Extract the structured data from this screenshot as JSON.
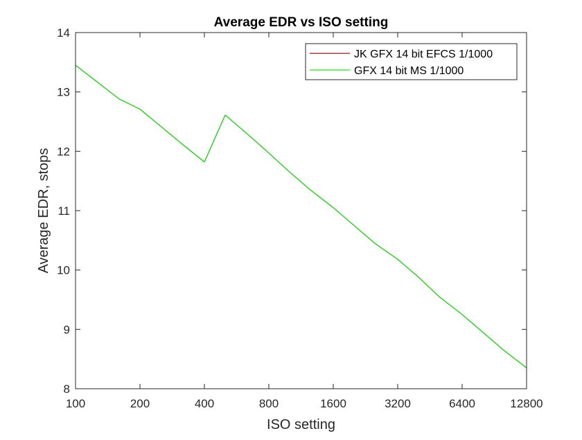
{
  "chart_data": {
    "type": "line",
    "title": "Average EDR vs ISO setting",
    "xlabel": "ISO setting",
    "ylabel": "Average EDR, stops",
    "x_scale": "log2",
    "xlim": [
      100,
      12800
    ],
    "ylim": [
      8,
      14
    ],
    "x_ticks": [
      100,
      200,
      400,
      800,
      1600,
      3200,
      6400,
      12800
    ],
    "x_tick_labels": [
      "100",
      "200",
      "400",
      "800",
      "1600",
      "3200",
      "6400",
      "12800"
    ],
    "y_ticks": [
      8,
      9,
      10,
      11,
      12,
      13,
      14
    ],
    "y_tick_labels": [
      "8",
      "9",
      "10",
      "11",
      "12",
      "13",
      "14"
    ],
    "grid": false,
    "legend_position": "top-right",
    "series": [
      {
        "name": "JK GFX 14 bit EFCS 1/1000",
        "color": "#8b1a1a",
        "x": [
          100,
          160,
          200,
          250,
          320,
          400,
          500,
          640,
          800,
          1000,
          1250,
          1600,
          2000,
          2500,
          3200,
          4000,
          5000,
          6400,
          8000,
          10000,
          12800
        ],
        "y": [
          13.45,
          12.88,
          12.71,
          12.42,
          12.1,
          11.82,
          12.61,
          12.28,
          11.97,
          11.65,
          11.35,
          11.05,
          10.75,
          10.45,
          10.18,
          9.88,
          9.55,
          9.25,
          8.95,
          8.65,
          8.35
        ]
      },
      {
        "name": "GFX 14 bit MS 1/1000",
        "color": "#1adf1a",
        "x": [
          100,
          160,
          200,
          250,
          320,
          400,
          500,
          640,
          800,
          1000,
          1250,
          1600,
          2000,
          2500,
          3200,
          4000,
          5000,
          6400,
          8000,
          10000,
          12800
        ],
        "y": [
          13.45,
          12.88,
          12.71,
          12.42,
          12.1,
          11.82,
          12.61,
          12.28,
          11.97,
          11.65,
          11.35,
          11.05,
          10.75,
          10.45,
          10.18,
          9.88,
          9.55,
          9.25,
          8.95,
          8.65,
          8.35
        ]
      }
    ]
  }
}
